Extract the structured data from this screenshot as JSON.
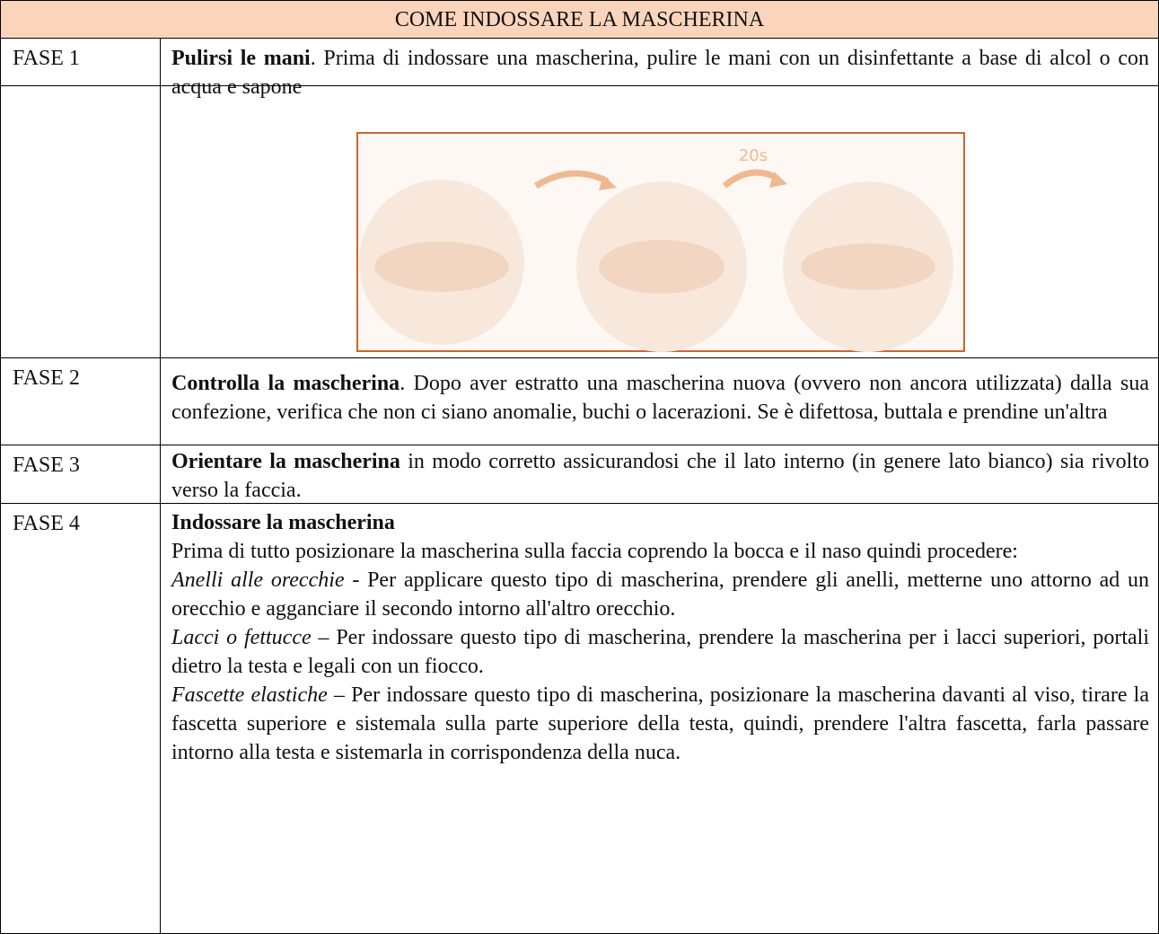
{
  "table": {
    "title": "COME INDOSSARE LA MASCHERINA",
    "rows": [
      {
        "label": "FASE 1",
        "lead": "Pulirsi le mani",
        "text": ". Prima di indossare una mascherina, pulire le mani con un disinfettante a base di alcol o con acqua e sapone"
      },
      {
        "image_label": "20s"
      },
      {
        "label": "FASE 2",
        "lead": "Controlla la mascherina",
        "text": ". Dopo aver estratto una mascherina nuova (ovvero non ancora utilizzata) dalla sua confezione, verifica che non ci siano anomalie, buchi o lacerazioni. Se è difettosa, buttala e prendine un'altra"
      },
      {
        "label": "FASE 3",
        "lead": "Orientare la mascherina",
        "text": " in modo corretto assicurandosi che il lato interno (in genere lato bianco) sia rivolto verso la faccia."
      },
      {
        "label": "FASE 4",
        "lead": "Indossare la mascherina",
        "text": "Prima di tutto posizionare la mascherina sulla faccia coprendo la bocca e il naso quindi procedere:",
        "items": [
          {
            "term": "Anelli alle orecchie",
            "text": " - Per applicare questo tipo di mascherina, prendere gli anelli, metterne uno attorno ad un orecchio e agganciare il secondo intorno all'altro orecchio."
          },
          {
            "term": "Lacci o fettucce",
            "text": " – Per indossare questo tipo di mascherina, prendere la mascherina per i lacci superiori, portali dietro la testa e legali con un fiocco."
          },
          {
            "term": "Fascette elastiche",
            "text": " – Per indossare questo tipo di mascherina, posizionare la mascherina davanti al viso, tirare la fascetta superiore e sistemala sulla parte superiore della testa, quindi, prendere l'altra fascetta, farla passare intorno alla testa e sistemarla in corrispondenza della nuca."
          }
        ]
      }
    ]
  }
}
